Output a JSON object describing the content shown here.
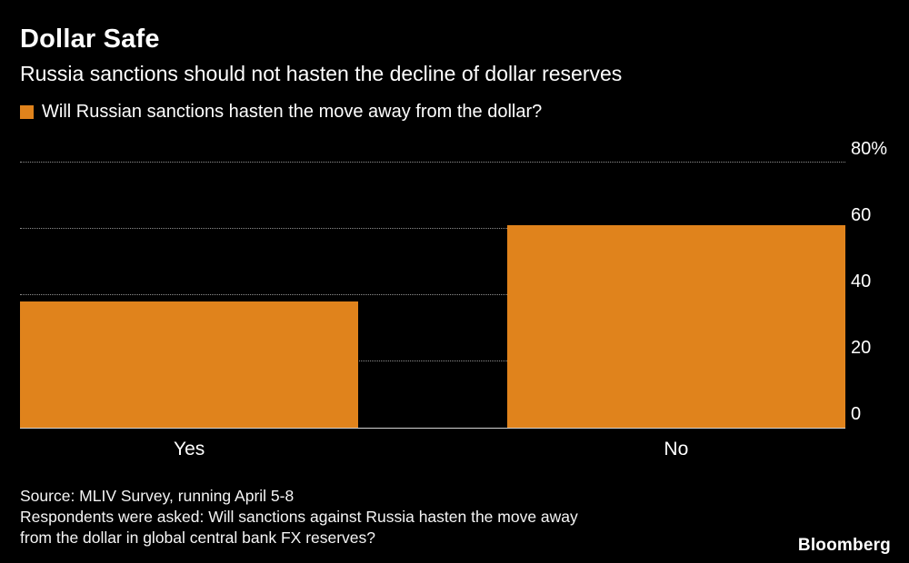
{
  "chart_data": {
    "type": "bar",
    "title": "Dollar Safe",
    "subtitle": "Russia sanctions should not hasten the decline of dollar reserves",
    "legend": "Will Russian sanctions hasten the move away from the dollar?",
    "categories": [
      "Yes",
      "No"
    ],
    "values": [
      38,
      61
    ],
    "unit": "%",
    "ylim": [
      0,
      80
    ],
    "yticks": [
      {
        "value": 0,
        "label": "0"
      },
      {
        "value": 20,
        "label": "20"
      },
      {
        "value": 40,
        "label": "40"
      },
      {
        "value": 60,
        "label": "60"
      },
      {
        "value": 80,
        "label": "80%"
      }
    ],
    "bar_color": "#E0831C",
    "grid": "horizontal-dotted",
    "axis_side": "right",
    "legend_position": "top-left"
  },
  "footer": {
    "source": "Source: MLIV Survey, running April 5-8",
    "note_line1": "Respondents were asked: Will sanctions against Russia hasten the move away",
    "note_line2": "from the dollar in global central bank FX reserves?",
    "brand": "Bloomberg"
  },
  "colors": {
    "background": "#000000",
    "text": "#FFFFFF",
    "grid": "#8F8F8F",
    "baseline": "#D4D4D4",
    "accent": "#E0831C"
  }
}
